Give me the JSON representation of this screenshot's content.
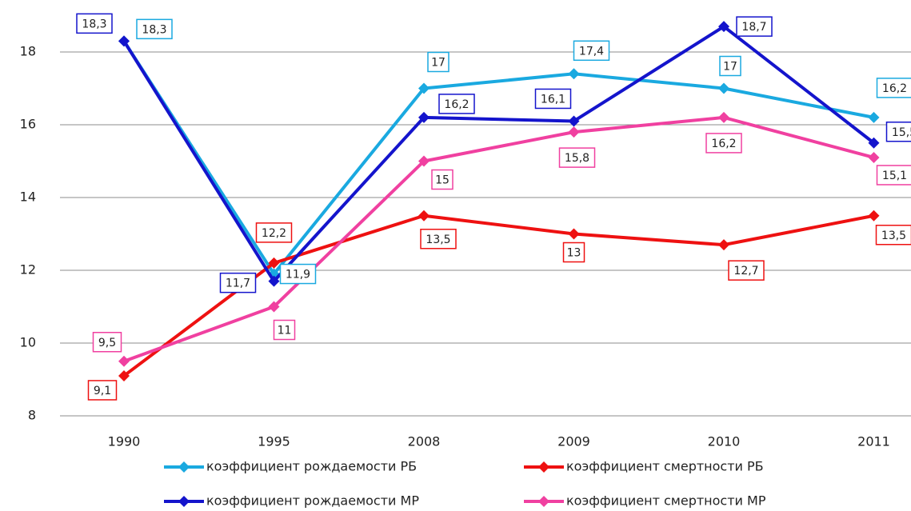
{
  "chart_data": {
    "type": "line",
    "categories": [
      "1990",
      "1995",
      "2008",
      "2009",
      "2010",
      "2011"
    ],
    "series": [
      {
        "name": "коэффициент рождаемости РБ",
        "color": "#1aa9e0",
        "values": [
          18.3,
          11.9,
          17,
          17.4,
          17,
          16.2
        ],
        "value_labels": [
          "18,3",
          "11,9",
          "17",
          "17,4",
          "17",
          "16,2"
        ]
      },
      {
        "name": "коэффициент смертности РБ",
        "color": "#ee1111",
        "values": [
          9.1,
          12.2,
          13.5,
          13,
          12.7,
          13.5
        ],
        "value_labels": [
          "9,1",
          "12,2",
          "13,5",
          "13",
          "12,7",
          "13,5"
        ]
      },
      {
        "name": "коэффициент рождаемости МР",
        "color": "#1414cc",
        "values": [
          18.3,
          11.7,
          16.2,
          16.1,
          18.7,
          15.5
        ],
        "value_labels": [
          "18,3",
          "11,7",
          "16,2",
          "16,1",
          "18,7",
          "15,5"
        ]
      },
      {
        "name": "коэффициент смертности МР",
        "color": "#f040a0",
        "values": [
          9.5,
          11,
          15,
          15.8,
          16.2,
          15.1
        ],
        "value_labels": [
          "9,5",
          "11",
          "15",
          "15,8",
          "16,2",
          "15,1"
        ]
      }
    ],
    "ylim": [
      8,
      19.4
    ],
    "yticks": [
      8,
      10,
      12,
      14,
      16,
      18
    ],
    "grid": true
  }
}
